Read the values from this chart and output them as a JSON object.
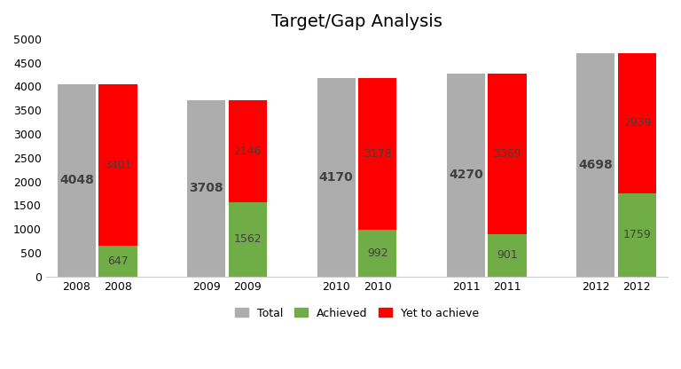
{
  "title": "Target/Gap Analysis",
  "years": [
    2008,
    2009,
    2010,
    2011,
    2012
  ],
  "totals": [
    4048,
    3708,
    4170,
    4270,
    4698
  ],
  "achieved": [
    647,
    1562,
    992,
    901,
    1759
  ],
  "yet_to_achieve": [
    3401,
    2146,
    3178,
    3369,
    2939
  ],
  "color_total": "#ADADAD",
  "color_achieved": "#70AD47",
  "color_yet": "#FF0000",
  "bar_width": 0.65,
  "ylim": [
    0,
    5000
  ],
  "yticks": [
    0,
    500,
    1000,
    1500,
    2000,
    2500,
    3000,
    3500,
    4000,
    4500,
    5000
  ],
  "legend_labels": [
    "Total",
    "Achieved",
    "Yet to achieve"
  ],
  "title_fontsize": 14,
  "tick_fontsize": 9,
  "label_fontsize_total": 10,
  "label_fontsize_stack": 9,
  "text_color_total": "#404040",
  "text_color_stack": "#404040",
  "background_color": "#FFFFFF"
}
